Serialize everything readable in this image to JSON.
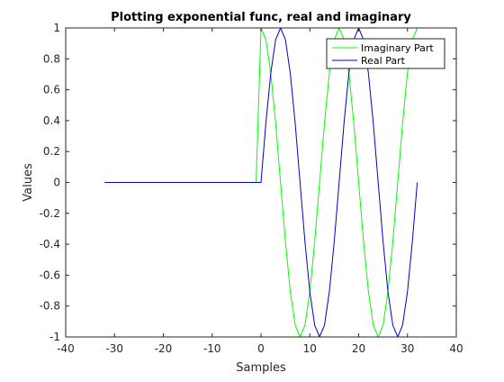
{
  "chart_data": {
    "type": "line",
    "title": "Plotting exponential func, real and imaginary",
    "xlabel": "Samples",
    "ylabel": "Values",
    "xlim": [
      -40,
      40
    ],
    "ylim": [
      -1,
      1
    ],
    "xticks": [
      -40,
      -30,
      -20,
      -10,
      0,
      10,
      20,
      30,
      40
    ],
    "xtick_labels": [
      "-40",
      "-30",
      "-20",
      "-10",
      "0",
      "10",
      "20",
      "30",
      "40"
    ],
    "yticks": [
      -1,
      -0.8,
      -0.6,
      -0.4,
      -0.2,
      0,
      0.2,
      0.4,
      0.6,
      0.8,
      1
    ],
    "ytick_labels": [
      "-1",
      "-0.8",
      "-0.6",
      "-0.4",
      "-0.2",
      "0",
      "0.2",
      "0.4",
      "0.6",
      "0.8",
      "1"
    ],
    "grid": false,
    "legend_position": "top-right",
    "x": [
      -32,
      -31,
      -30,
      -29,
      -28,
      -27,
      -26,
      -25,
      -24,
      -23,
      -22,
      -21,
      -20,
      -19,
      -18,
      -17,
      -16,
      -15,
      -14,
      -13,
      -12,
      -11,
      -10,
      -9,
      -8,
      -7,
      -6,
      -5,
      -4,
      -3,
      -2,
      -1,
      0,
      1,
      2,
      3,
      4,
      5,
      6,
      7,
      8,
      9,
      10,
      11,
      12,
      13,
      14,
      15,
      16,
      17,
      18,
      19,
      20,
      21,
      22,
      23,
      24,
      25,
      26,
      27,
      28,
      29,
      30,
      31,
      32
    ],
    "series": [
      {
        "name": "Imaginary Part",
        "color": "#00ff00",
        "values": [
          0,
          0,
          0,
          0,
          0,
          0,
          0,
          0,
          0,
          0,
          0,
          0,
          0,
          0,
          0,
          0,
          0,
          0,
          0,
          0,
          0,
          0,
          0,
          0,
          0,
          0,
          0,
          0,
          0,
          0,
          0,
          0,
          1,
          0.924,
          0.707,
          0.383,
          0,
          -0.383,
          -0.707,
          -0.924,
          -1,
          -0.924,
          -0.707,
          -0.383,
          0,
          0.383,
          0.707,
          0.924,
          1,
          0.924,
          0.707,
          0.383,
          0,
          -0.383,
          -0.707,
          -0.924,
          -1,
          -0.924,
          -0.707,
          -0.383,
          0,
          0.383,
          0.707,
          0.924,
          1
        ]
      },
      {
        "name": "Real Part",
        "color": "#0000cc",
        "values": [
          0,
          0,
          0,
          0,
          0,
          0,
          0,
          0,
          0,
          0,
          0,
          0,
          0,
          0,
          0,
          0,
          0,
          0,
          0,
          0,
          0,
          0,
          0,
          0,
          0,
          0,
          0,
          0,
          0,
          0,
          0,
          0,
          0,
          0.383,
          0.707,
          0.924,
          1,
          0.924,
          0.707,
          0.383,
          0,
          -0.383,
          -0.707,
          -0.924,
          -1,
          -0.924,
          -0.707,
          -0.383,
          0,
          0.383,
          0.707,
          0.924,
          1,
          0.924,
          0.707,
          0.383,
          0,
          -0.383,
          -0.707,
          -0.924,
          -1,
          -0.924,
          -0.707,
          -0.383,
          0
        ]
      }
    ]
  }
}
